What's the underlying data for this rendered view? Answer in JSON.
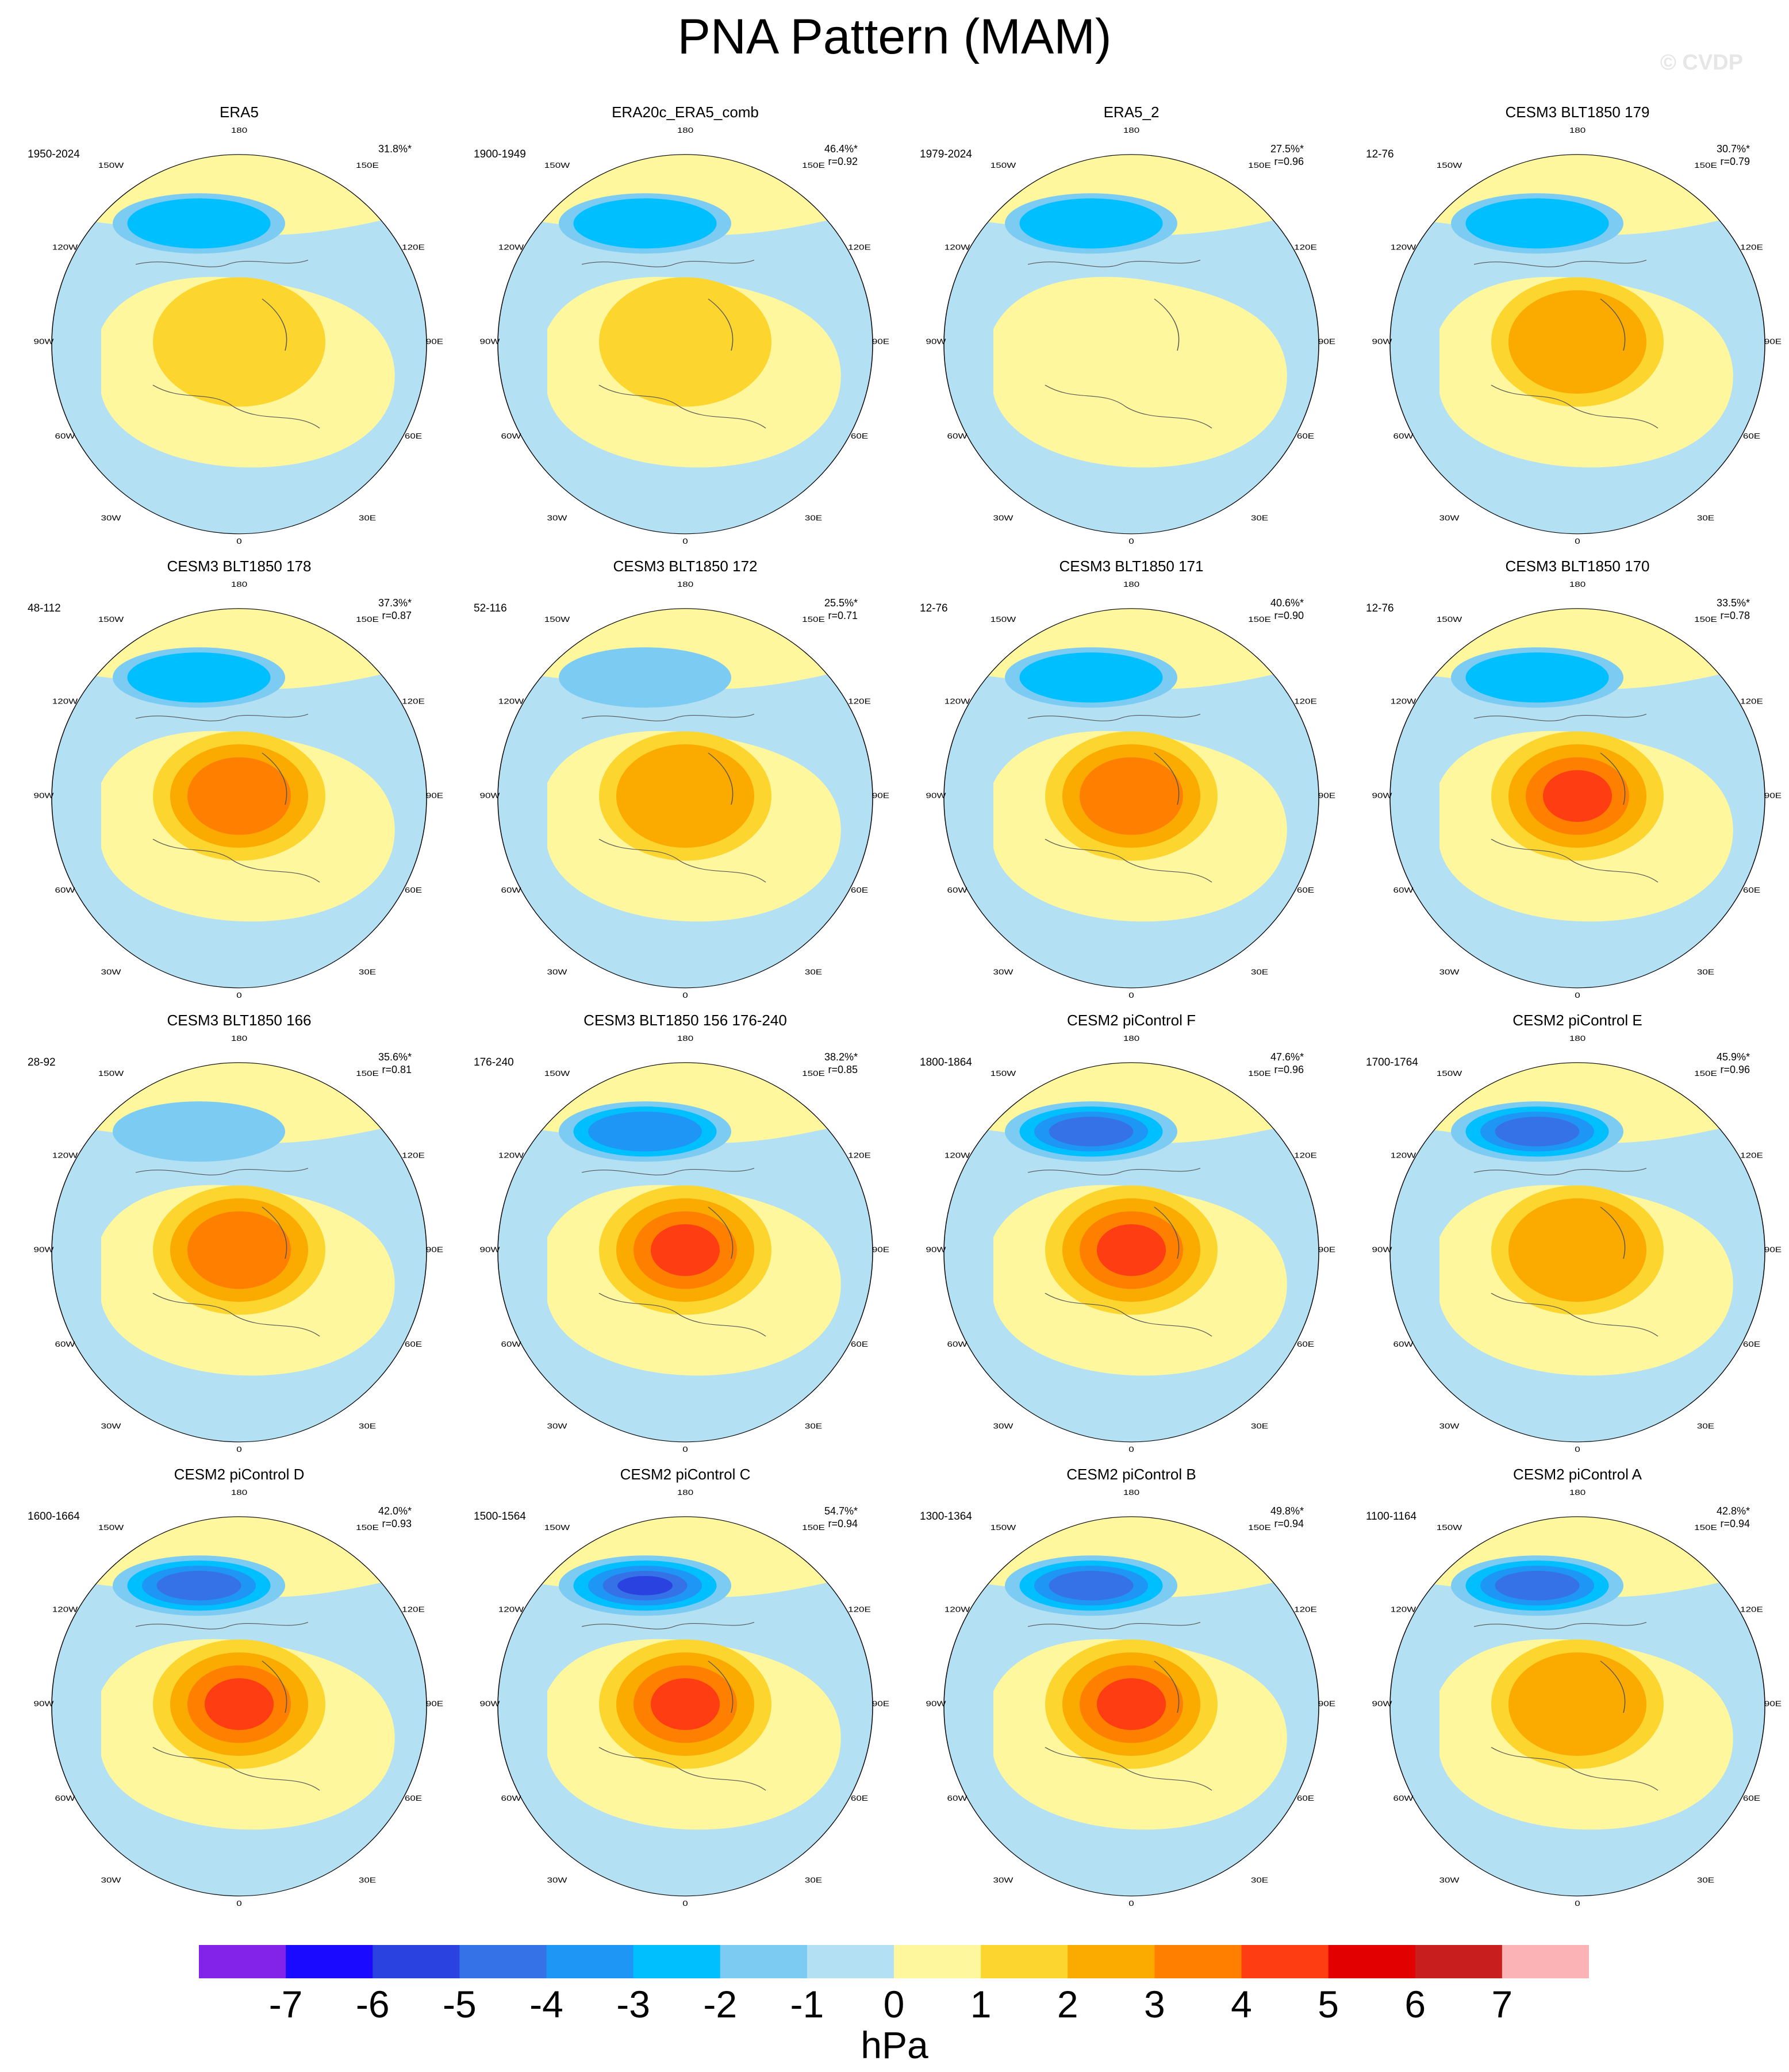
{
  "title": "PNA Pattern (MAM)",
  "watermark": "© CVDP",
  "longitude_labels": [
    "180",
    "150E",
    "120E",
    "90E",
    "60E",
    "30E",
    "0",
    "30W",
    "60W",
    "90W",
    "120W",
    "150W"
  ],
  "panels": [
    {
      "title": "ERA5",
      "period": "1950-2024",
      "pct": "31.8%*",
      "r": ""
    },
    {
      "title": "ERA20c_ERA5_comb",
      "period": "1900-1949",
      "pct": "46.4%*",
      "r": "r=0.92"
    },
    {
      "title": "ERA5_2",
      "period": "1979-2024",
      "pct": "27.5%*",
      "r": "r=0.96"
    },
    {
      "title": "CESM3 BLT1850 179",
      "period": "12-76",
      "pct": "30.7%*",
      "r": "r=0.79"
    },
    {
      "title": "CESM3 BLT1850 178",
      "period": "48-112",
      "pct": "37.3%*",
      "r": "r=0.87"
    },
    {
      "title": "CESM3 BLT1850 172",
      "period": "52-116",
      "pct": "25.5%*",
      "r": "r=0.71"
    },
    {
      "title": "CESM3 BLT1850 171",
      "period": "12-76",
      "pct": "40.6%*",
      "r": "r=0.90"
    },
    {
      "title": "CESM3 BLT1850 170",
      "period": "12-76",
      "pct": "33.5%*",
      "r": "r=0.78"
    },
    {
      "title": "CESM3 BLT1850 166",
      "period": "28-92",
      "pct": "35.6%*",
      "r": "r=0.81"
    },
    {
      "title": "CESM3 BLT1850 156 176-240",
      "period": "176-240",
      "pct": "38.2%*",
      "r": "r=0.85"
    },
    {
      "title": "CESM2 piControl F",
      "period": "1800-1864",
      "pct": "47.6%*",
      "r": "r=0.96"
    },
    {
      "title": "CESM2 piControl E",
      "period": "1700-1764",
      "pct": "45.9%*",
      "r": "r=0.96"
    },
    {
      "title": "CESM2 piControl D",
      "period": "1600-1664",
      "pct": "42.0%*",
      "r": "r=0.93"
    },
    {
      "title": "CESM2 piControl C",
      "period": "1500-1564",
      "pct": "54.7%*",
      "r": "r=0.94"
    },
    {
      "title": "CESM2 piControl B",
      "period": "1300-1364",
      "pct": "49.8%*",
      "r": "r=0.94"
    },
    {
      "title": "CESM2 piControl A",
      "period": "1100-1164",
      "pct": "42.8%*",
      "r": "r=0.94"
    }
  ],
  "colorbar": {
    "units": "hPa",
    "labels": [
      "-7",
      "-6",
      "-5",
      "-4",
      "-3",
      "-2",
      "-1",
      "0",
      "1",
      "2",
      "3",
      "4",
      "5",
      "6",
      "7"
    ],
    "colors": [
      "#8322e8",
      "#1a0aff",
      "#2a42e0",
      "#3572e8",
      "#1e96f5",
      "#00bfff",
      "#7ccbf2",
      "#b4e0f4",
      "#fff79e",
      "#fdd52f",
      "#fbaa00",
      "#ff7f00",
      "#ff3d12",
      "#e30000",
      "#c81e1e",
      "#fbb3b5"
    ]
  },
  "pattern_intensity": {
    "neg": [
      2,
      2,
      2,
      2,
      2,
      1,
      2,
      2,
      1,
      3,
      4,
      4,
      4,
      5,
      4,
      4
    ],
    "pos": [
      1,
      1,
      0,
      2,
      3,
      2,
      3,
      4,
      3,
      4,
      4,
      2,
      4,
      4,
      4,
      2
    ]
  }
}
